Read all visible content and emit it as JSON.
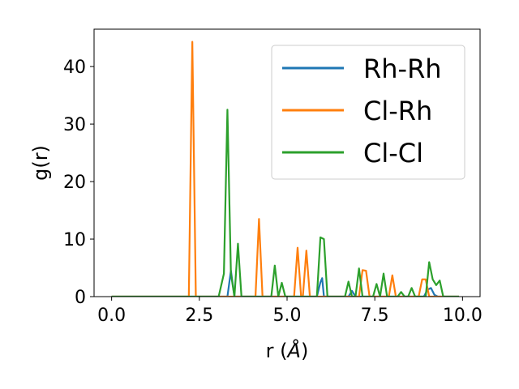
{
  "chart_data": {
    "type": "line",
    "title": "",
    "xlabel_main": "r (",
    "xlabel_unit": "Å",
    "xlabel_close": ")",
    "ylabel": "g(r)",
    "xlim": [
      -0.5,
      10.5
    ],
    "ylim": [
      0,
      46.5
    ],
    "x_ticks": [
      0,
      2.5,
      5,
      7.5,
      10
    ],
    "x_tick_labels": [
      "0.0",
      "2.5",
      "5.0",
      "7.5",
      "10.0"
    ],
    "y_ticks": [
      0,
      10,
      20,
      30,
      40
    ],
    "y_tick_labels": [
      "0",
      "10",
      "20",
      "30",
      "40"
    ],
    "grid": false,
    "legend_position": "top-right",
    "series": [
      {
        "name": "Rh-Rh",
        "color": "#1f77b4",
        "points": [
          [
            0,
            0
          ],
          [
            3.3,
            0
          ],
          [
            3.4,
            4.5
          ],
          [
            3.5,
            0
          ],
          [
            5.85,
            0
          ],
          [
            5.95,
            2.5
          ],
          [
            6.0,
            3.2
          ],
          [
            6.05,
            0
          ],
          [
            6.75,
            0
          ],
          [
            6.85,
            1.0
          ],
          [
            6.95,
            0
          ],
          [
            8.9,
            0
          ],
          [
            9.0,
            1.2
          ],
          [
            9.1,
            1.5
          ],
          [
            9.2,
            0.3
          ],
          [
            9.3,
            0
          ],
          [
            9.9,
            0
          ]
        ]
      },
      {
        "name": "Cl-Rh",
        "color": "#ff7f0e",
        "points": [
          [
            0,
            0
          ],
          [
            2.2,
            0
          ],
          [
            2.3,
            44.3
          ],
          [
            2.4,
            0
          ],
          [
            4.1,
            0
          ],
          [
            4.2,
            13.5
          ],
          [
            4.3,
            0
          ],
          [
            5.2,
            0
          ],
          [
            5.3,
            8.5
          ],
          [
            5.4,
            0
          ],
          [
            5.45,
            0
          ],
          [
            5.55,
            8.0
          ],
          [
            5.65,
            0
          ],
          [
            7.05,
            0
          ],
          [
            7.15,
            4.6
          ],
          [
            7.25,
            4.5
          ],
          [
            7.35,
            0
          ],
          [
            7.9,
            0
          ],
          [
            8.0,
            3.7
          ],
          [
            8.1,
            0
          ],
          [
            8.75,
            0
          ],
          [
            8.85,
            3.0
          ],
          [
            8.95,
            3.0
          ],
          [
            9.05,
            0
          ],
          [
            9.9,
            0
          ]
        ]
      },
      {
        "name": "Cl-Cl",
        "color": "#2ca02c",
        "points": [
          [
            0,
            0
          ],
          [
            3.05,
            0
          ],
          [
            3.2,
            4.0
          ],
          [
            3.3,
            32.5
          ],
          [
            3.4,
            4.0
          ],
          [
            3.5,
            0
          ],
          [
            3.6,
            9.2
          ],
          [
            3.7,
            0
          ],
          [
            4.55,
            0
          ],
          [
            4.65,
            5.4
          ],
          [
            4.75,
            0
          ],
          [
            4.85,
            2.4
          ],
          [
            4.95,
            0
          ],
          [
            5.85,
            0
          ],
          [
            5.95,
            10.3
          ],
          [
            6.05,
            10.0
          ],
          [
            6.15,
            0
          ],
          [
            6.65,
            0
          ],
          [
            6.75,
            2.6
          ],
          [
            6.85,
            0
          ],
          [
            6.95,
            0
          ],
          [
            7.05,
            4.9
          ],
          [
            7.15,
            0
          ],
          [
            7.45,
            0
          ],
          [
            7.55,
            2.2
          ],
          [
            7.65,
            0
          ],
          [
            7.75,
            4.0
          ],
          [
            7.85,
            0
          ],
          [
            8.15,
            0
          ],
          [
            8.25,
            0.8
          ],
          [
            8.35,
            0
          ],
          [
            8.45,
            0
          ],
          [
            8.55,
            1.5
          ],
          [
            8.65,
            0
          ],
          [
            8.95,
            0
          ],
          [
            9.05,
            6.0
          ],
          [
            9.15,
            3.0
          ],
          [
            9.25,
            2.0
          ],
          [
            9.35,
            2.8
          ],
          [
            9.45,
            0
          ],
          [
            9.9,
            0
          ]
        ]
      }
    ]
  }
}
